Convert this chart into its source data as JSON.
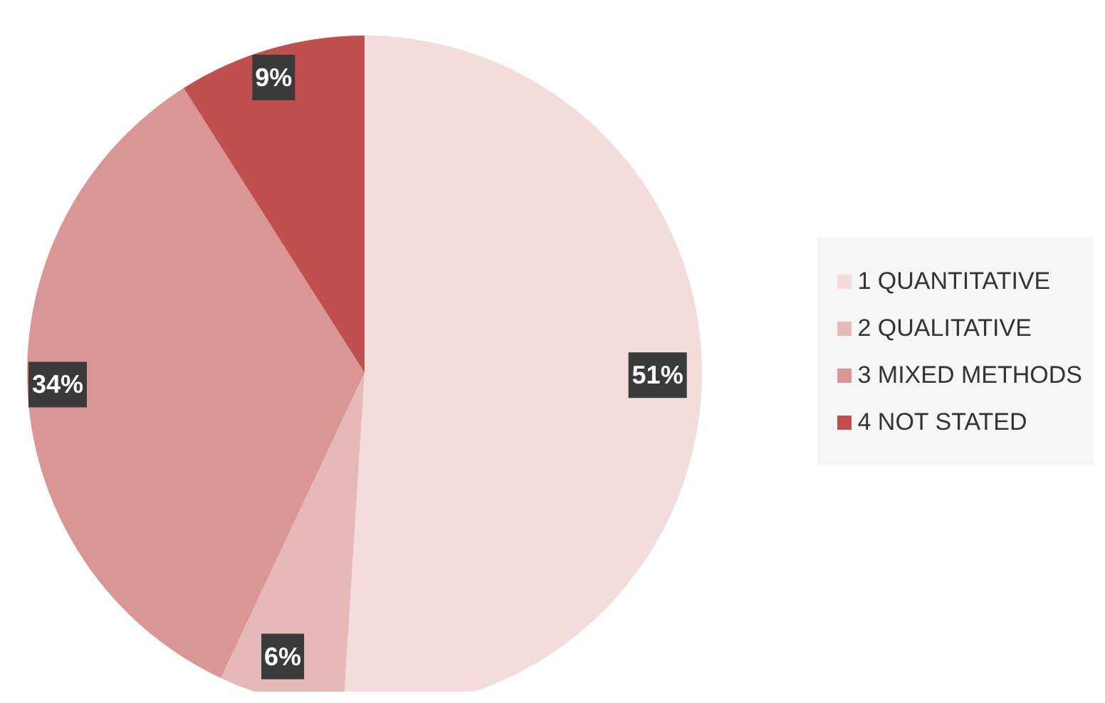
{
  "chart_data": {
    "type": "pie",
    "categories": [
      "1 QUANTITATIVE",
      "2 QUALITATIVE",
      "3 MIXED METHODS",
      "4 NOT STATED"
    ],
    "values": [
      51,
      6,
      34,
      9
    ],
    "colors": [
      "#f2dcdc",
      "#e6b8b7",
      "#da9694",
      "#c0504d"
    ],
    "value_labels": [
      "51%",
      "6%",
      "34%",
      "9%"
    ],
    "legend": "right"
  }
}
